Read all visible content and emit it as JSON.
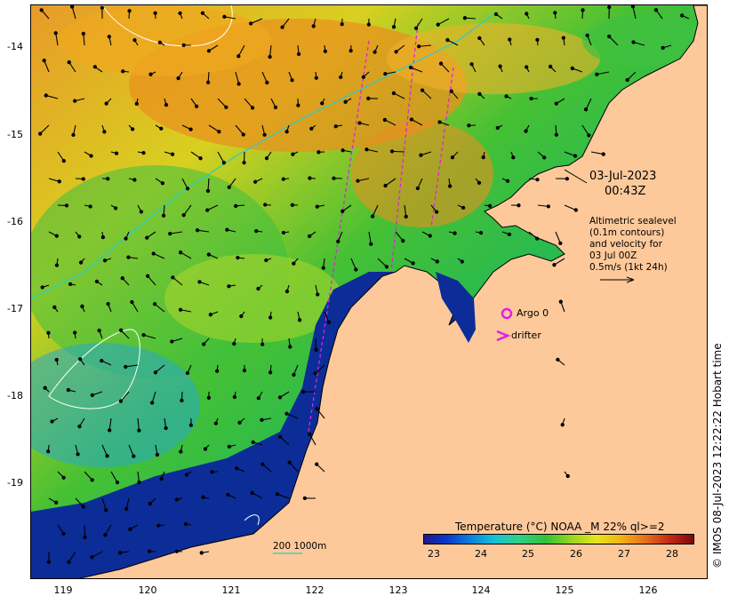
{
  "map": {
    "lat_ticks": [
      "-14",
      "-15",
      "-16",
      "-17",
      "-18",
      "-19"
    ],
    "lon_ticks": [
      "119",
      "120",
      "121",
      "122",
      "123",
      "124",
      "125",
      "126"
    ],
    "colors": {
      "land": "#fdc99b",
      "coast_outline": "#000000",
      "track": "#e020e0",
      "contour": "#ffffff",
      "bathy": "#20d0d0"
    }
  },
  "annotations": {
    "date": "03-Jul-2023",
    "time": "00:43Z",
    "altimetry_lines": [
      "Altimetric sealevel",
      "(0.1m contours)",
      "and velocity for",
      "03 Jul 00Z",
      "0.5m/s (1kt 24h)"
    ]
  },
  "legend": {
    "argo_label": "Argo 0",
    "drifter_label": "drifter",
    "scale_label": "200  1000m"
  },
  "colorbar": {
    "title": "Temperature (°C) NOAA _M 22% ql>=2",
    "ticks": [
      "23",
      "24",
      "25",
      "26",
      "27",
      "28"
    ]
  },
  "credit": "© IMOS 08-Jul-2023 12:22:22 Hobart time"
}
